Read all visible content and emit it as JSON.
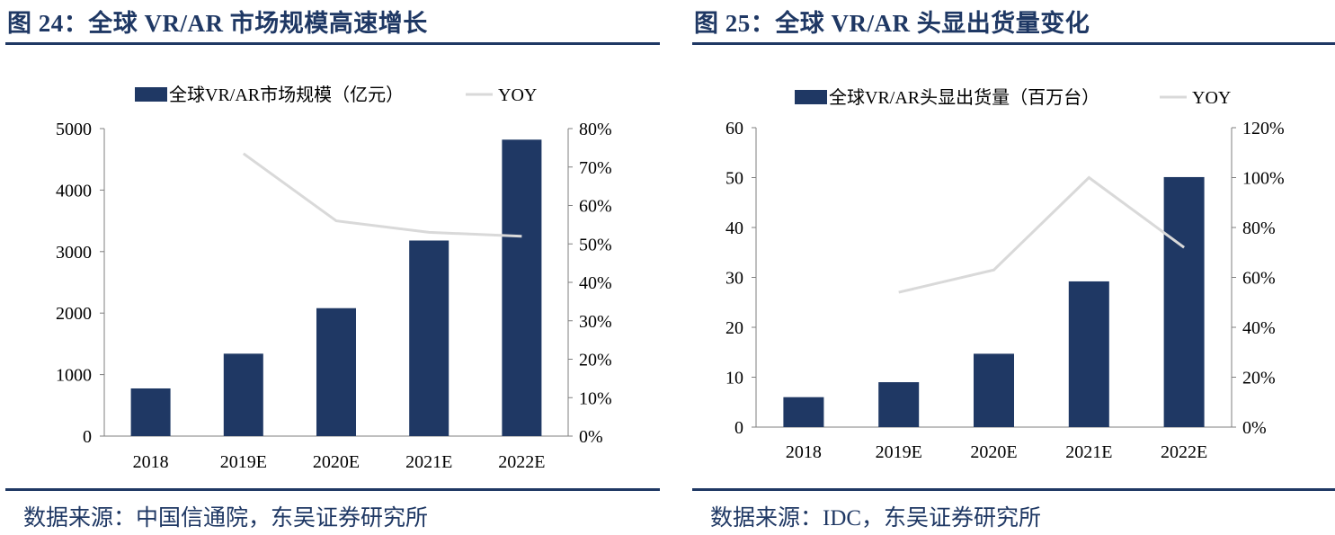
{
  "colors": {
    "bar": "#1f3864",
    "line": "#d9d9d9",
    "title": "#1f3864",
    "axis": "#7f7f7f"
  },
  "panels": [
    {
      "title": "图 24：全球 VR/AR 市场规模高速增长",
      "source": "数据来源：中国信通院，东吴证券研究所"
    },
    {
      "title": "图 25：全球 VR/AR 头显出货量变化",
      "source": "数据来源：IDC，东吴证券研究所"
    }
  ],
  "chart_data": [
    {
      "type": "bar",
      "categories": [
        "2018",
        "2019E",
        "2020E",
        "2021E",
        "2022E"
      ],
      "series": [
        {
          "name": "全球VR/AR市场规模（亿元）",
          "type": "bar",
          "axis": "left",
          "values": [
            775,
            1340,
            2080,
            3180,
            4820
          ]
        },
        {
          "name": "YOY",
          "type": "line",
          "axis": "right",
          "values": [
            null,
            0.735,
            0.56,
            0.53,
            0.52
          ]
        }
      ],
      "ylim": [
        0,
        5000
      ],
      "yticks": [
        "0",
        "1000",
        "2000",
        "3000",
        "4000",
        "5000"
      ],
      "y2lim": [
        0,
        0.8
      ],
      "y2ticks": [
        "0%",
        "10%",
        "20%",
        "30%",
        "40%",
        "50%",
        "60%",
        "70%",
        "80%"
      ],
      "legend": "top",
      "grid": false
    },
    {
      "type": "bar",
      "categories": [
        "2018",
        "2019E",
        "2020E",
        "2021E",
        "2022E"
      ],
      "series": [
        {
          "name": "全球VR/AR头显出货量（百万台）",
          "type": "bar",
          "axis": "left",
          "values": [
            6,
            9,
            14.7,
            29.2,
            50.1
          ]
        },
        {
          "name": "YOY",
          "type": "line",
          "axis": "right",
          "values": [
            null,
            0.54,
            0.63,
            1.0,
            0.72
          ]
        }
      ],
      "ylim": [
        0,
        60
      ],
      "yticks": [
        "0",
        "10",
        "20",
        "30",
        "40",
        "50",
        "60"
      ],
      "y2lim": [
        0,
        1.2
      ],
      "y2ticks": [
        "0%",
        "20%",
        "40%",
        "60%",
        "80%",
        "100%",
        "120%"
      ],
      "legend": "top",
      "grid": false
    }
  ]
}
